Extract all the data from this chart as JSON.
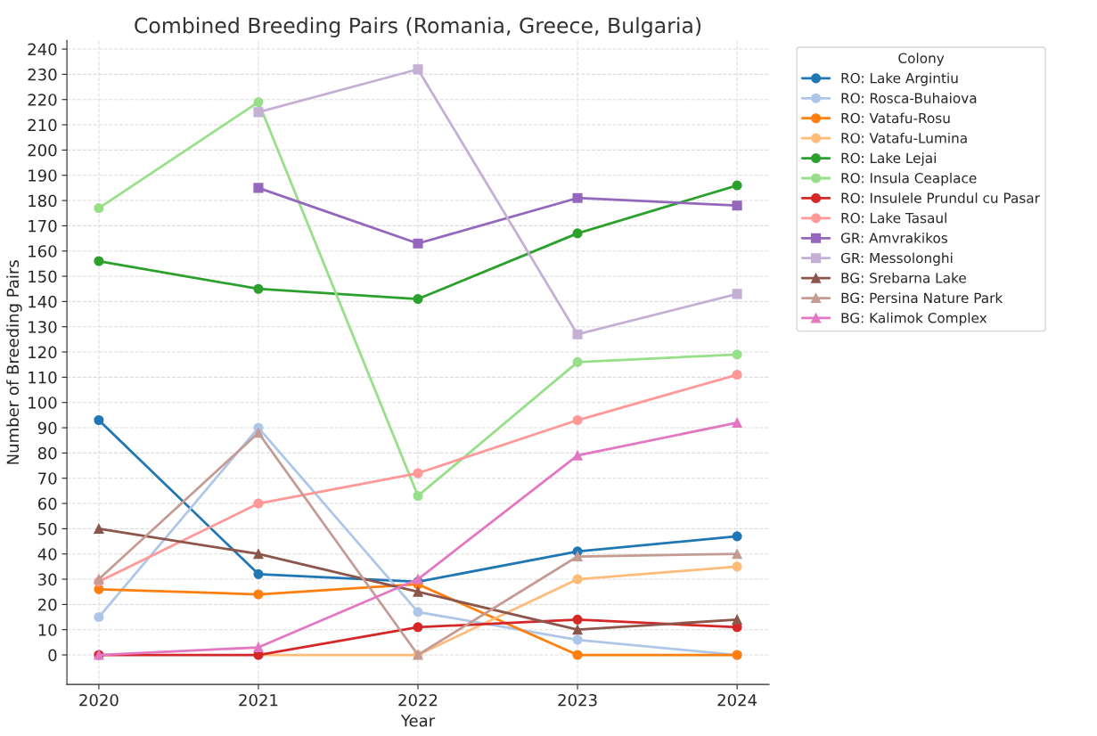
{
  "chart_data": {
    "type": "line",
    "title": "Combined Breeding Pairs (Romania, Greece, Bulgaria)",
    "xlabel": "Year",
    "ylabel": "Number of Breeding Pairs",
    "legend_title": "Colony",
    "x": [
      2020,
      2021,
      2022,
      2023,
      2024
    ],
    "xlim": [
      2019.8,
      2024.2
    ],
    "xticks": [
      2020,
      2021,
      2022,
      2023,
      2024
    ],
    "ylim": [
      -11.7,
      243.4
    ],
    "yticks": [
      0,
      10,
      20,
      30,
      40,
      50,
      60,
      70,
      80,
      90,
      100,
      110,
      120,
      130,
      140,
      150,
      160,
      170,
      180,
      190,
      200,
      210,
      220,
      230,
      240
    ],
    "grid": true,
    "legend": "top right",
    "series": [
      {
        "name": "RO: Lake Argintiu",
        "color": "#1f77b4",
        "marker": "circle",
        "values": [
          93,
          32,
          29,
          41,
          47
        ]
      },
      {
        "name": "RO: Rosca-Buhaiova",
        "color": "#aec7e8",
        "marker": "circle",
        "values": [
          15,
          90,
          17,
          6,
          0
        ]
      },
      {
        "name": "RO: Vatafu-Rosu",
        "color": "#ff7f0e",
        "marker": "circle",
        "values": [
          26,
          24,
          28,
          0,
          0
        ]
      },
      {
        "name": "RO: Vatafu-Lumina",
        "color": "#ffbb78",
        "marker": "circle",
        "values": [
          null,
          0,
          0,
          30,
          35
        ]
      },
      {
        "name": "RO: Lake Lejai",
        "color": "#2ca02c",
        "marker": "circle",
        "values": [
          156,
          145,
          141,
          167,
          186
        ]
      },
      {
        "name": "RO: Insula Ceaplace",
        "color": "#98df8a",
        "marker": "circle",
        "values": [
          177,
          219,
          63,
          116,
          119
        ]
      },
      {
        "name": "RO: Insulele Prundul cu Pasar",
        "color": "#d62728",
        "marker": "circle",
        "values": [
          0,
          0,
          11,
          14,
          11
        ]
      },
      {
        "name": "RO: Lake Tasaul",
        "color": "#ff9896",
        "marker": "circle",
        "values": [
          29,
          60,
          72,
          93,
          111
        ]
      },
      {
        "name": "GR: Amvrakikos",
        "color": "#9467bd",
        "marker": "square",
        "values": [
          null,
          185,
          163,
          181,
          178
        ]
      },
      {
        "name": "GR: Messolonghi",
        "color": "#c5b0d5",
        "marker": "square",
        "values": [
          null,
          215,
          232,
          127,
          143
        ]
      },
      {
        "name": "BG: Srebarna Lake",
        "color": "#8c564b",
        "marker": "triangle",
        "values": [
          50,
          40,
          25,
          10,
          14
        ]
      },
      {
        "name": "BG: Persina Nature Park",
        "color": "#c49c94",
        "marker": "triangle",
        "values": [
          30,
          88,
          0,
          39,
          40
        ]
      },
      {
        "name": "BG: Kalimok Complex",
        "color": "#e377c2",
        "marker": "triangle",
        "values": [
          0,
          3,
          30,
          79,
          92
        ]
      }
    ]
  }
}
